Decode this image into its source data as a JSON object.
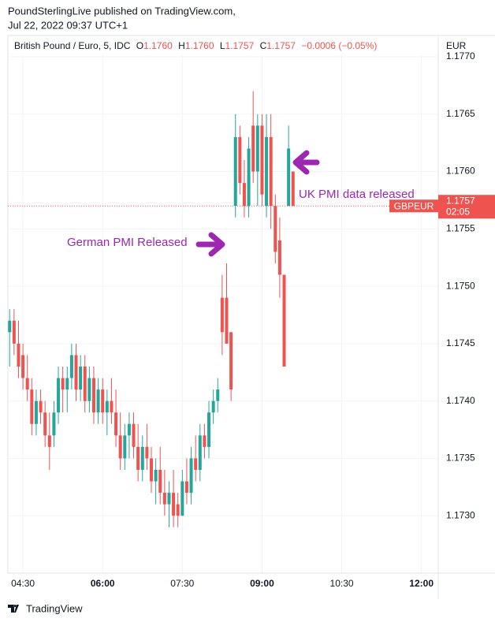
{
  "publisher": "PoundSterlingLive published on TradingView.com,",
  "published_at": "Jul 22, 2022 09:37 UTC+1",
  "footer": "TradingView",
  "chart_data": {
    "type": "candlestick",
    "header": {
      "symbol": "British Pound / Euro, 5, IDC",
      "o_label": "O",
      "o": "1.1760",
      "h_label": "H",
      "h": "1.1760",
      "l_label": "L",
      "l": "1.1757",
      "c_label": "C",
      "c": "1.1757",
      "change": "−0.0006 (−0.05%)"
    },
    "y_axis_label": "EUR",
    "up_color": "#26a69a",
    "down_color": "#ef5350",
    "grid": true,
    "x": [
      "04:15",
      "04:20",
      "04:25",
      "04:30",
      "04:35",
      "04:40",
      "04:45",
      "04:50",
      "04:55",
      "05:00",
      "05:05",
      "05:10",
      "05:15",
      "05:20",
      "05:25",
      "05:30",
      "05:35",
      "05:40",
      "05:45",
      "05:50",
      "05:55",
      "06:00",
      "06:05",
      "06:10",
      "06:15",
      "06:20",
      "06:25",
      "06:30",
      "06:35",
      "06:40",
      "06:45",
      "06:50",
      "06:55",
      "07:00",
      "07:05",
      "07:10",
      "07:15",
      "07:20",
      "07:25",
      "07:30",
      "07:35",
      "07:40",
      "07:45",
      "07:50",
      "07:55",
      "08:00",
      "08:05",
      "08:10",
      "08:15",
      "08:20",
      "08:25",
      "08:30",
      "08:35",
      "08:40",
      "08:45",
      "08:50",
      "08:55",
      "09:00",
      "09:05",
      "09:10",
      "09:15",
      "09:20",
      "09:25",
      "09:30",
      "09:35"
    ],
    "open": [
      1.1746,
      1.1747,
      1.1745,
      1.1744,
      1.1742,
      1.1741,
      1.1738,
      1.174,
      1.1739,
      1.1737,
      1.1737,
      1.1739,
      1.1742,
      1.1741,
      1.1742,
      1.1744,
      1.1741,
      1.1743,
      1.174,
      1.1742,
      1.1739,
      1.1741,
      1.1739,
      1.174,
      1.1739,
      1.1737,
      1.1735,
      1.1737,
      1.1738,
      1.1736,
      1.1734,
      1.1736,
      1.1735,
      1.1733,
      1.1734,
      1.1732,
      1.1731,
      1.1732,
      1.1731,
      1.173,
      1.1733,
      1.1732,
      1.1735,
      1.1734,
      1.1737,
      1.1736,
      1.1739,
      1.174,
      1.1749,
      1.1749,
      1.1746,
      1.1757,
      1.1763,
      1.1759,
      1.1757,
      1.1764,
      1.176,
      1.1764,
      1.1757,
      1.1763,
      1.1757,
      1.1754,
      1.1751,
      1.1757,
      1.176
    ],
    "high": [
      1.1748,
      1.1748,
      1.1747,
      1.1745,
      1.1744,
      1.1742,
      1.1741,
      1.1741,
      1.174,
      1.1739,
      1.174,
      1.1743,
      1.1743,
      1.1743,
      1.1745,
      1.1745,
      1.1744,
      1.1744,
      1.1743,
      1.1743,
      1.1742,
      1.1742,
      1.1741,
      1.1742,
      1.1741,
      1.1739,
      1.1738,
      1.1739,
      1.1739,
      1.1738,
      1.1737,
      1.1738,
      1.1736,
      1.1735,
      1.1736,
      1.1734,
      1.1733,
      1.1734,
      1.1732,
      1.1734,
      1.1735,
      1.1736,
      1.1737,
      1.1738,
      1.1738,
      1.174,
      1.1741,
      1.1742,
      1.1751,
      1.1752,
      1.1746,
      1.1765,
      1.1764,
      1.1761,
      1.1763,
      1.1767,
      1.1765,
      1.1765,
      1.1765,
      1.1765,
      1.1758,
      1.1756,
      1.1751,
      1.1764,
      1.176
    ],
    "low": [
      1.1743,
      1.1744,
      1.1742,
      1.1741,
      1.174,
      1.1737,
      1.1737,
      1.1738,
      1.1736,
      1.1734,
      1.1736,
      1.1738,
      1.1739,
      1.1739,
      1.1741,
      1.174,
      1.174,
      1.1739,
      1.1739,
      1.1738,
      1.1738,
      1.1738,
      1.1737,
      1.1738,
      1.1736,
      1.1734,
      1.1734,
      1.1735,
      1.1735,
      1.1733,
      1.1733,
      1.1734,
      1.1732,
      1.1731,
      1.1731,
      1.173,
      1.1729,
      1.1729,
      1.1729,
      1.173,
      1.1731,
      1.1731,
      1.1733,
      1.1733,
      1.1735,
      1.1735,
      1.1738,
      1.1739,
      1.1744,
      1.1745,
      1.174,
      1.1756,
      1.1758,
      1.1756,
      1.1756,
      1.1759,
      1.1757,
      1.1757,
      1.1756,
      1.1755,
      1.1752,
      1.1749,
      1.1743,
      1.1757,
      1.1757
    ],
    "close": [
      1.1747,
      1.1745,
      1.1743,
      1.1742,
      1.1741,
      1.1738,
      1.174,
      1.1739,
      1.1737,
      1.1736,
      1.1739,
      1.1742,
      1.1741,
      1.1742,
      1.1744,
      1.1741,
      1.1743,
      1.174,
      1.1742,
      1.1739,
      1.1741,
      1.1739,
      1.174,
      1.1739,
      1.1737,
      1.1735,
      1.1737,
      1.1738,
      1.1736,
      1.1734,
      1.1736,
      1.1735,
      1.1733,
      1.1734,
      1.1732,
      1.1731,
      1.1732,
      1.173,
      1.173,
      1.1733,
      1.1732,
      1.1735,
      1.1734,
      1.1737,
      1.1736,
      1.1739,
      1.174,
      1.1741,
      1.1746,
      1.1745,
      1.1741,
      1.1763,
      1.1759,
      1.1757,
      1.1762,
      1.176,
      1.1764,
      1.1758,
      1.1763,
      1.1757,
      1.1753,
      1.1751,
      1.1743,
      1.1762,
      1.1757
    ],
    "xlim": [
      "04:13",
      "12:19"
    ],
    "xticks": [
      "04:30",
      "06:00",
      "07:30",
      "09:00",
      "10:30",
      "12:00"
    ],
    "xticks_bold": [
      "06:00",
      "09:00",
      "12:00"
    ],
    "ylim": [
      1.1725,
      1.177
    ],
    "yticks": [
      {
        "value": 1.177,
        "label": "1.1770"
      },
      1.1765,
      {
        "value": 1.176,
        "label": "1.1760"
      },
      1.1755,
      {
        "value": 1.175,
        "label": "1.1750"
      },
      1.1745,
      {
        "value": 1.174,
        "label": "1.1740"
      },
      1.1735,
      {
        "value": 1.173,
        "label": "1.1730"
      }
    ],
    "last_price": 1.1757,
    "last_price_symbol": "GBPEUR",
    "countdown": "02:05",
    "annotations": [
      "German PMI Released",
      "UK PMI data released"
    ]
  }
}
